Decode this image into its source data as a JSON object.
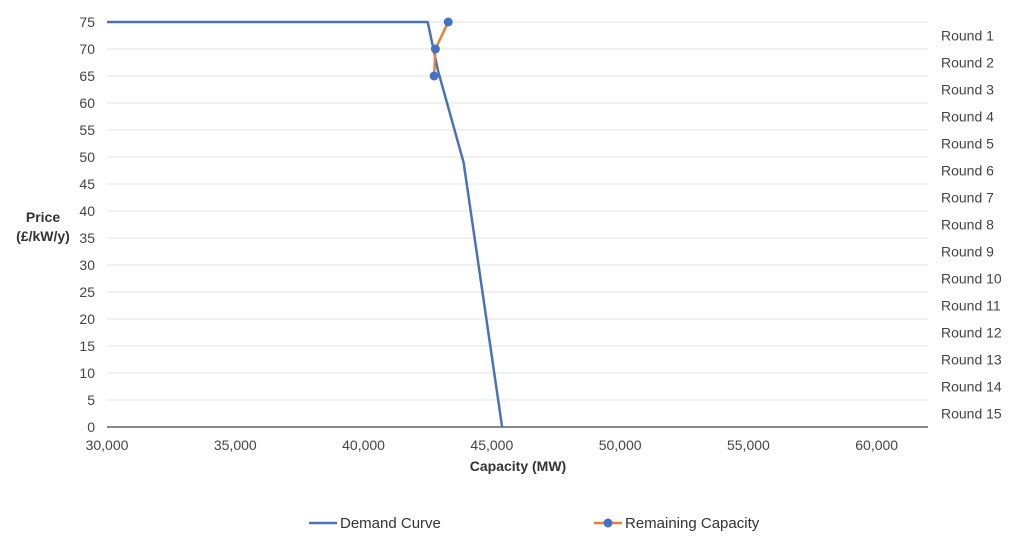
{
  "chart_data": {
    "type": "line",
    "xlabel": "Capacity (MW)",
    "ylabel_lines": [
      "Price",
      "(£/kW/y)"
    ],
    "xlim": [
      30000,
      62000
    ],
    "ylim": [
      0,
      75
    ],
    "x_ticks": [
      30000,
      35000,
      40000,
      45000,
      50000,
      55000,
      60000
    ],
    "x_tick_labels": [
      "30,000",
      "35,000",
      "40,000",
      "45,000",
      "50,000",
      "55,000",
      "60,000"
    ],
    "y_ticks": [
      0,
      5,
      10,
      15,
      20,
      25,
      30,
      35,
      40,
      45,
      50,
      55,
      60,
      65,
      70,
      75
    ],
    "y_tick_labels": [
      "0",
      "5",
      "10",
      "15",
      "20",
      "25",
      "30",
      "35",
      "40",
      "45",
      "50",
      "55",
      "60",
      "65",
      "70",
      "75"
    ],
    "right_axis_labels": [
      "Round 1",
      "Round 2",
      "Round 3",
      "Round 4",
      "Round 5",
      "Round 6",
      "Round 7",
      "Round 8",
      "Round 9",
      "Round 10",
      "Round 11",
      "Round 12",
      "Round 13",
      "Round 14",
      "Round 15"
    ],
    "grid": true,
    "legend_position": "bottom",
    "series": [
      {
        "name": "Demand Curve",
        "color": "#4a72b8",
        "markers": false,
        "x": [
          30000,
          42500,
          42900,
          43900,
          45400
        ],
        "y": [
          75,
          75,
          66,
          49,
          0
        ]
      },
      {
        "name": "Remaining Capacity",
        "color": "#ed7d31",
        "marker_color": "#4472c4",
        "markers": true,
        "x": [
          43300,
          42800,
          42750
        ],
        "y": [
          75,
          70,
          65
        ]
      }
    ]
  }
}
